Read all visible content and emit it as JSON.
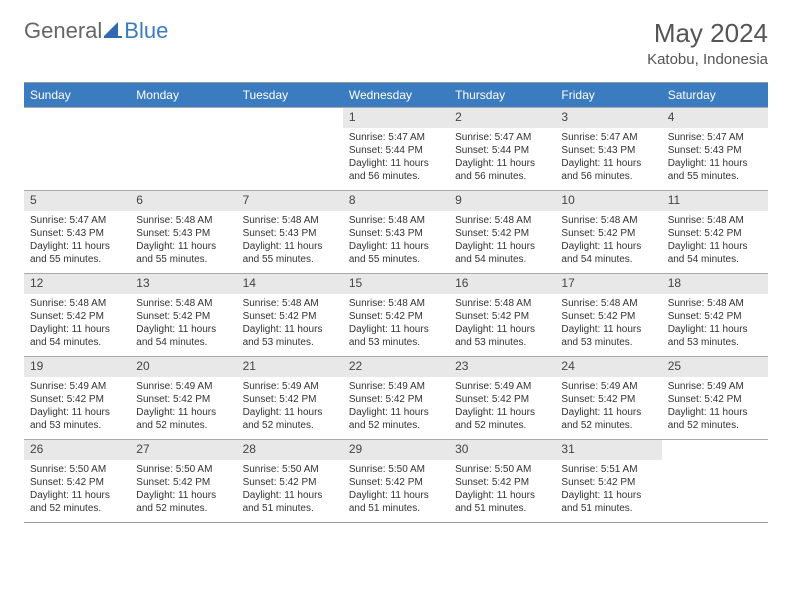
{
  "brand": {
    "part1": "General",
    "part2": "Blue"
  },
  "title": "May 2024",
  "location": "Katobu, Indonesia",
  "colors": {
    "header_bg": "#3b7bbf",
    "header_text": "#ffffff",
    "daynum_bg": "#e8e8e8",
    "text": "#333333",
    "border": "#999999"
  },
  "day_headers": [
    "Sunday",
    "Monday",
    "Tuesday",
    "Wednesday",
    "Thursday",
    "Friday",
    "Saturday"
  ],
  "weeks": [
    [
      {
        "num": "",
        "sunrise": "",
        "sunset": "",
        "daylight": ""
      },
      {
        "num": "",
        "sunrise": "",
        "sunset": "",
        "daylight": ""
      },
      {
        "num": "",
        "sunrise": "",
        "sunset": "",
        "daylight": ""
      },
      {
        "num": "1",
        "sunrise": "Sunrise: 5:47 AM",
        "sunset": "Sunset: 5:44 PM",
        "daylight": "Daylight: 11 hours and 56 minutes."
      },
      {
        "num": "2",
        "sunrise": "Sunrise: 5:47 AM",
        "sunset": "Sunset: 5:44 PM",
        "daylight": "Daylight: 11 hours and 56 minutes."
      },
      {
        "num": "3",
        "sunrise": "Sunrise: 5:47 AM",
        "sunset": "Sunset: 5:43 PM",
        "daylight": "Daylight: 11 hours and 56 minutes."
      },
      {
        "num": "4",
        "sunrise": "Sunrise: 5:47 AM",
        "sunset": "Sunset: 5:43 PM",
        "daylight": "Daylight: 11 hours and 55 minutes."
      }
    ],
    [
      {
        "num": "5",
        "sunrise": "Sunrise: 5:47 AM",
        "sunset": "Sunset: 5:43 PM",
        "daylight": "Daylight: 11 hours and 55 minutes."
      },
      {
        "num": "6",
        "sunrise": "Sunrise: 5:48 AM",
        "sunset": "Sunset: 5:43 PM",
        "daylight": "Daylight: 11 hours and 55 minutes."
      },
      {
        "num": "7",
        "sunrise": "Sunrise: 5:48 AM",
        "sunset": "Sunset: 5:43 PM",
        "daylight": "Daylight: 11 hours and 55 minutes."
      },
      {
        "num": "8",
        "sunrise": "Sunrise: 5:48 AM",
        "sunset": "Sunset: 5:43 PM",
        "daylight": "Daylight: 11 hours and 55 minutes."
      },
      {
        "num": "9",
        "sunrise": "Sunrise: 5:48 AM",
        "sunset": "Sunset: 5:42 PM",
        "daylight": "Daylight: 11 hours and 54 minutes."
      },
      {
        "num": "10",
        "sunrise": "Sunrise: 5:48 AM",
        "sunset": "Sunset: 5:42 PM",
        "daylight": "Daylight: 11 hours and 54 minutes."
      },
      {
        "num": "11",
        "sunrise": "Sunrise: 5:48 AM",
        "sunset": "Sunset: 5:42 PM",
        "daylight": "Daylight: 11 hours and 54 minutes."
      }
    ],
    [
      {
        "num": "12",
        "sunrise": "Sunrise: 5:48 AM",
        "sunset": "Sunset: 5:42 PM",
        "daylight": "Daylight: 11 hours and 54 minutes."
      },
      {
        "num": "13",
        "sunrise": "Sunrise: 5:48 AM",
        "sunset": "Sunset: 5:42 PM",
        "daylight": "Daylight: 11 hours and 54 minutes."
      },
      {
        "num": "14",
        "sunrise": "Sunrise: 5:48 AM",
        "sunset": "Sunset: 5:42 PM",
        "daylight": "Daylight: 11 hours and 53 minutes."
      },
      {
        "num": "15",
        "sunrise": "Sunrise: 5:48 AM",
        "sunset": "Sunset: 5:42 PM",
        "daylight": "Daylight: 11 hours and 53 minutes."
      },
      {
        "num": "16",
        "sunrise": "Sunrise: 5:48 AM",
        "sunset": "Sunset: 5:42 PM",
        "daylight": "Daylight: 11 hours and 53 minutes."
      },
      {
        "num": "17",
        "sunrise": "Sunrise: 5:48 AM",
        "sunset": "Sunset: 5:42 PM",
        "daylight": "Daylight: 11 hours and 53 minutes."
      },
      {
        "num": "18",
        "sunrise": "Sunrise: 5:48 AM",
        "sunset": "Sunset: 5:42 PM",
        "daylight": "Daylight: 11 hours and 53 minutes."
      }
    ],
    [
      {
        "num": "19",
        "sunrise": "Sunrise: 5:49 AM",
        "sunset": "Sunset: 5:42 PM",
        "daylight": "Daylight: 11 hours and 53 minutes."
      },
      {
        "num": "20",
        "sunrise": "Sunrise: 5:49 AM",
        "sunset": "Sunset: 5:42 PM",
        "daylight": "Daylight: 11 hours and 52 minutes."
      },
      {
        "num": "21",
        "sunrise": "Sunrise: 5:49 AM",
        "sunset": "Sunset: 5:42 PM",
        "daylight": "Daylight: 11 hours and 52 minutes."
      },
      {
        "num": "22",
        "sunrise": "Sunrise: 5:49 AM",
        "sunset": "Sunset: 5:42 PM",
        "daylight": "Daylight: 11 hours and 52 minutes."
      },
      {
        "num": "23",
        "sunrise": "Sunrise: 5:49 AM",
        "sunset": "Sunset: 5:42 PM",
        "daylight": "Daylight: 11 hours and 52 minutes."
      },
      {
        "num": "24",
        "sunrise": "Sunrise: 5:49 AM",
        "sunset": "Sunset: 5:42 PM",
        "daylight": "Daylight: 11 hours and 52 minutes."
      },
      {
        "num": "25",
        "sunrise": "Sunrise: 5:49 AM",
        "sunset": "Sunset: 5:42 PM",
        "daylight": "Daylight: 11 hours and 52 minutes."
      }
    ],
    [
      {
        "num": "26",
        "sunrise": "Sunrise: 5:50 AM",
        "sunset": "Sunset: 5:42 PM",
        "daylight": "Daylight: 11 hours and 52 minutes."
      },
      {
        "num": "27",
        "sunrise": "Sunrise: 5:50 AM",
        "sunset": "Sunset: 5:42 PM",
        "daylight": "Daylight: 11 hours and 52 minutes."
      },
      {
        "num": "28",
        "sunrise": "Sunrise: 5:50 AM",
        "sunset": "Sunset: 5:42 PM",
        "daylight": "Daylight: 11 hours and 51 minutes."
      },
      {
        "num": "29",
        "sunrise": "Sunrise: 5:50 AM",
        "sunset": "Sunset: 5:42 PM",
        "daylight": "Daylight: 11 hours and 51 minutes."
      },
      {
        "num": "30",
        "sunrise": "Sunrise: 5:50 AM",
        "sunset": "Sunset: 5:42 PM",
        "daylight": "Daylight: 11 hours and 51 minutes."
      },
      {
        "num": "31",
        "sunrise": "Sunrise: 5:51 AM",
        "sunset": "Sunset: 5:42 PM",
        "daylight": "Daylight: 11 hours and 51 minutes."
      },
      {
        "num": "",
        "sunrise": "",
        "sunset": "",
        "daylight": ""
      }
    ]
  ]
}
